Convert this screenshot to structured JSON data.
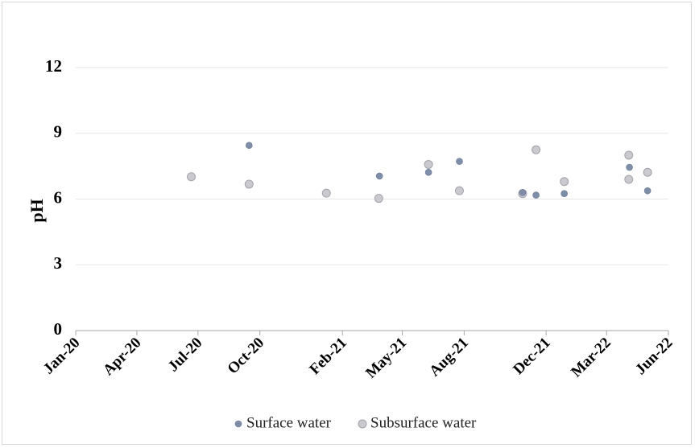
{
  "chart_data": {
    "type": "scatter",
    "title": "",
    "xlabel": "",
    "ylabel": "pH",
    "ylim": [
      0,
      12
    ],
    "yticks": [
      0,
      3,
      6,
      9,
      12
    ],
    "xlim": [
      "2020-01-01",
      "2022-06-01"
    ],
    "xticks": [
      {
        "label": "Jan-20",
        "date": "2020-01-01"
      },
      {
        "label": "Apr-20",
        "date": "2020-04-01"
      },
      {
        "label": "Jul-20",
        "date": "2020-07-01"
      },
      {
        "label": "Oct-20",
        "date": "2020-10-01"
      },
      {
        "label": "Feb-21",
        "date": "2021-02-01"
      },
      {
        "label": "May-21",
        "date": "2021-05-01"
      },
      {
        "label": "Aug-21",
        "date": "2021-08-01"
      },
      {
        "label": "Dec-21",
        "date": "2021-12-01"
      },
      {
        "label": "Mar-22",
        "date": "2022-03-01"
      },
      {
        "label": "Jun-22",
        "date": "2022-06-01"
      }
    ],
    "grid": "horizontal",
    "legend_position": "bottom",
    "series": [
      {
        "name": "Surface water",
        "color": "#7f8ea8",
        "points": [
          {
            "x": "2020-09-15",
            "y": 8.45
          },
          {
            "x": "2021-03-28",
            "y": 7.05
          },
          {
            "x": "2021-06-09",
            "y": 7.22
          },
          {
            "x": "2021-07-25",
            "y": 7.72
          },
          {
            "x": "2021-10-27",
            "y": 6.3
          },
          {
            "x": "2021-11-16",
            "y": 6.18
          },
          {
            "x": "2021-12-28",
            "y": 6.25
          },
          {
            "x": "2022-04-04",
            "y": 7.45
          },
          {
            "x": "2022-05-01",
            "y": 6.38
          }
        ]
      },
      {
        "name": "Subsurface water",
        "color": "#c9c9cf",
        "points": [
          {
            "x": "2020-06-21",
            "y": 7.02
          },
          {
            "x": "2020-09-15",
            "y": 6.68
          },
          {
            "x": "2021-01-08",
            "y": 6.27
          },
          {
            "x": "2021-03-27",
            "y": 6.03
          },
          {
            "x": "2021-06-09",
            "y": 7.58
          },
          {
            "x": "2021-07-25",
            "y": 6.38
          },
          {
            "x": "2021-10-27",
            "y": 6.25
          },
          {
            "x": "2021-11-16",
            "y": 8.25
          },
          {
            "x": "2021-12-28",
            "y": 6.8
          },
          {
            "x": "2022-04-03",
            "y": 8.0
          },
          {
            "x": "2022-04-03",
            "y": 6.9
          },
          {
            "x": "2022-05-01",
            "y": 7.22
          }
        ]
      }
    ]
  }
}
